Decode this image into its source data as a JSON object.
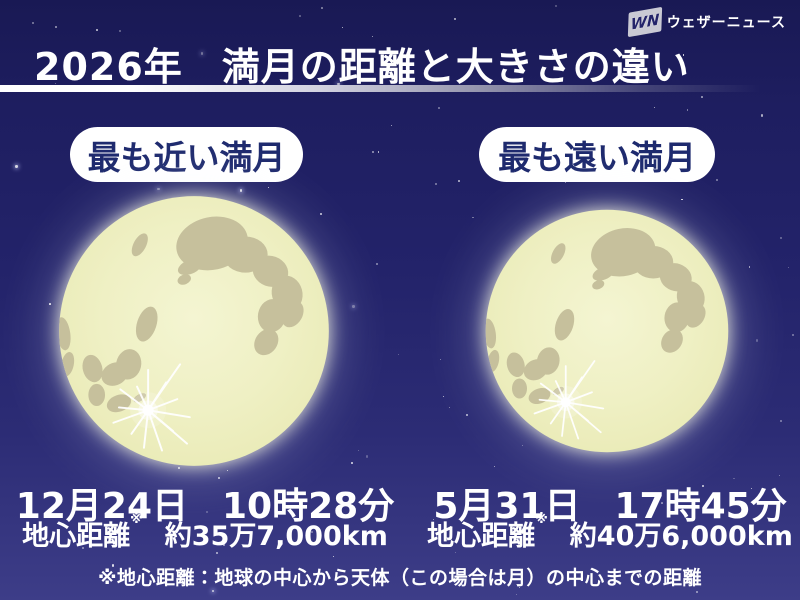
{
  "header": {
    "title": "2026年　満月の距離と大きさの違い",
    "logo_mark": "WN",
    "logo_name": "ウェザーニュース"
  },
  "moons": [
    {
      "label": "最も近い満月",
      "date": "12月24日",
      "time": "10時28分",
      "distance_label": "地心距離",
      "note_mark": "※",
      "distance_value": "約35万7,000km"
    },
    {
      "label": "最も遠い満月",
      "date": "5月31日",
      "time": "17時45分",
      "distance_label": "地心距離",
      "note_mark": "※",
      "distance_value": "約40万6,000km"
    }
  ],
  "footnote": "※地心距離：地球の中心から天体（この場合は月）の中心までの距離",
  "colors": {
    "background_top": "#191954",
    "background_bottom": "#3d3d88",
    "title_text": "#ffffff",
    "pill_background": "#ffffff",
    "pill_text": "#1e2a6e",
    "moon_body": "#edeec0",
    "moon_maria": "#c6c09c",
    "moon_glow": "#fffff0"
  }
}
